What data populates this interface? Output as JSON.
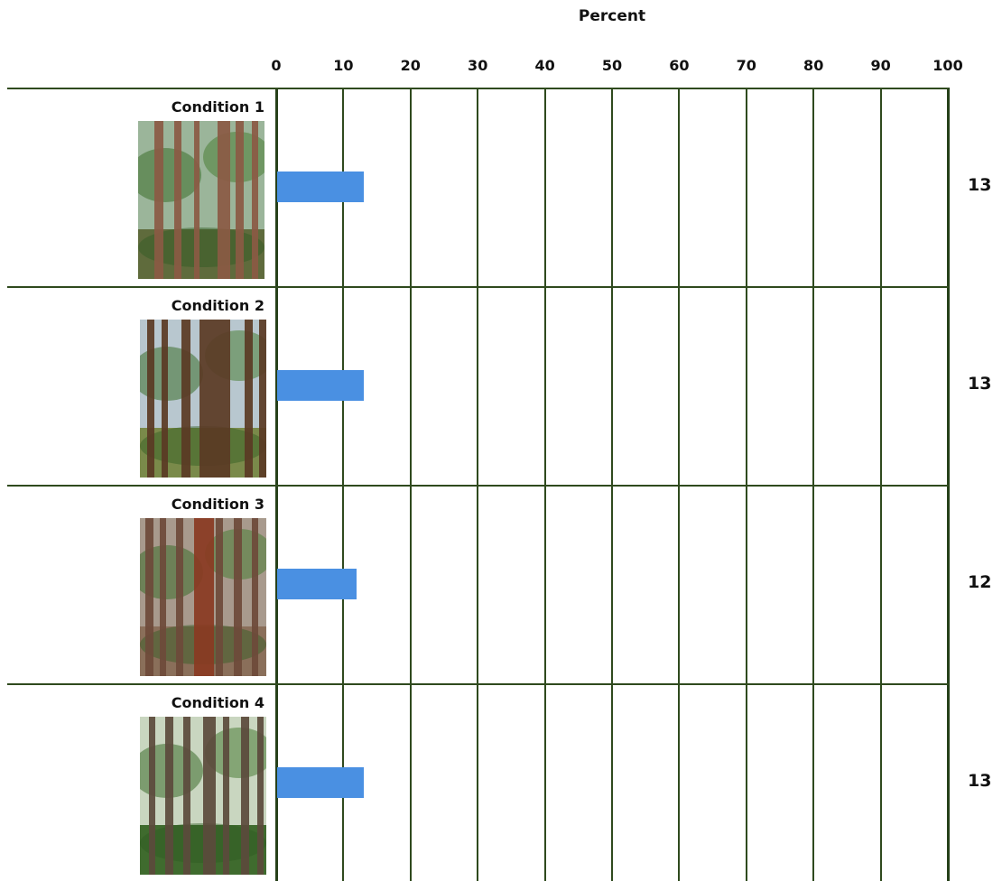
{
  "chart_data": {
    "type": "bar",
    "orientation": "horizontal",
    "xlabel": "Percent",
    "xlim": [
      0,
      100
    ],
    "ticks": [
      "0",
      "10",
      "20",
      "30",
      "40",
      "50",
      "60",
      "70",
      "80",
      "90",
      "100"
    ],
    "categories": [
      "Condition 1",
      "Condition 2",
      "Condition 3",
      "Condition 4"
    ],
    "values": [
      13,
      13,
      12,
      13
    ],
    "value_labels": [
      "13",
      "13",
      "12",
      "13"
    ],
    "grid": true,
    "bar_color": "#4a90e2",
    "grid_color": "#2f4a1e",
    "thumbnails": [
      "forest-photo",
      "forest-photo",
      "forest-photo",
      "forest-photo"
    ]
  }
}
